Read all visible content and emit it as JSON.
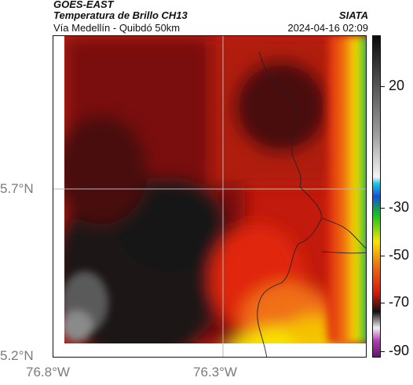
{
  "header": {
    "satellite": "GOES-EAST",
    "product": "Temperatura de Brillo CH13",
    "region": "Vía Medellín - Quibdó 50km",
    "organization": "SIATA",
    "datetime": "2024-04-16 02:09"
  },
  "map": {
    "lat_ticks": [
      "5.7°N",
      "5.2°N"
    ],
    "lon_ticks": [
      "76.8°W",
      "76.3°W"
    ],
    "gridlines": true
  },
  "colorbar": {
    "labels": [
      "20",
      "-30",
      "-50",
      "-70",
      "-90"
    ],
    "colors": {
      "hot": "#0b0b0b",
      "red": "#d81a0a",
      "orange": "#f06a10",
      "yellow": "#f5e600",
      "green": "#14c51e",
      "blue": "#1252d8",
      "magenta": "#b43cb4"
    }
  }
}
